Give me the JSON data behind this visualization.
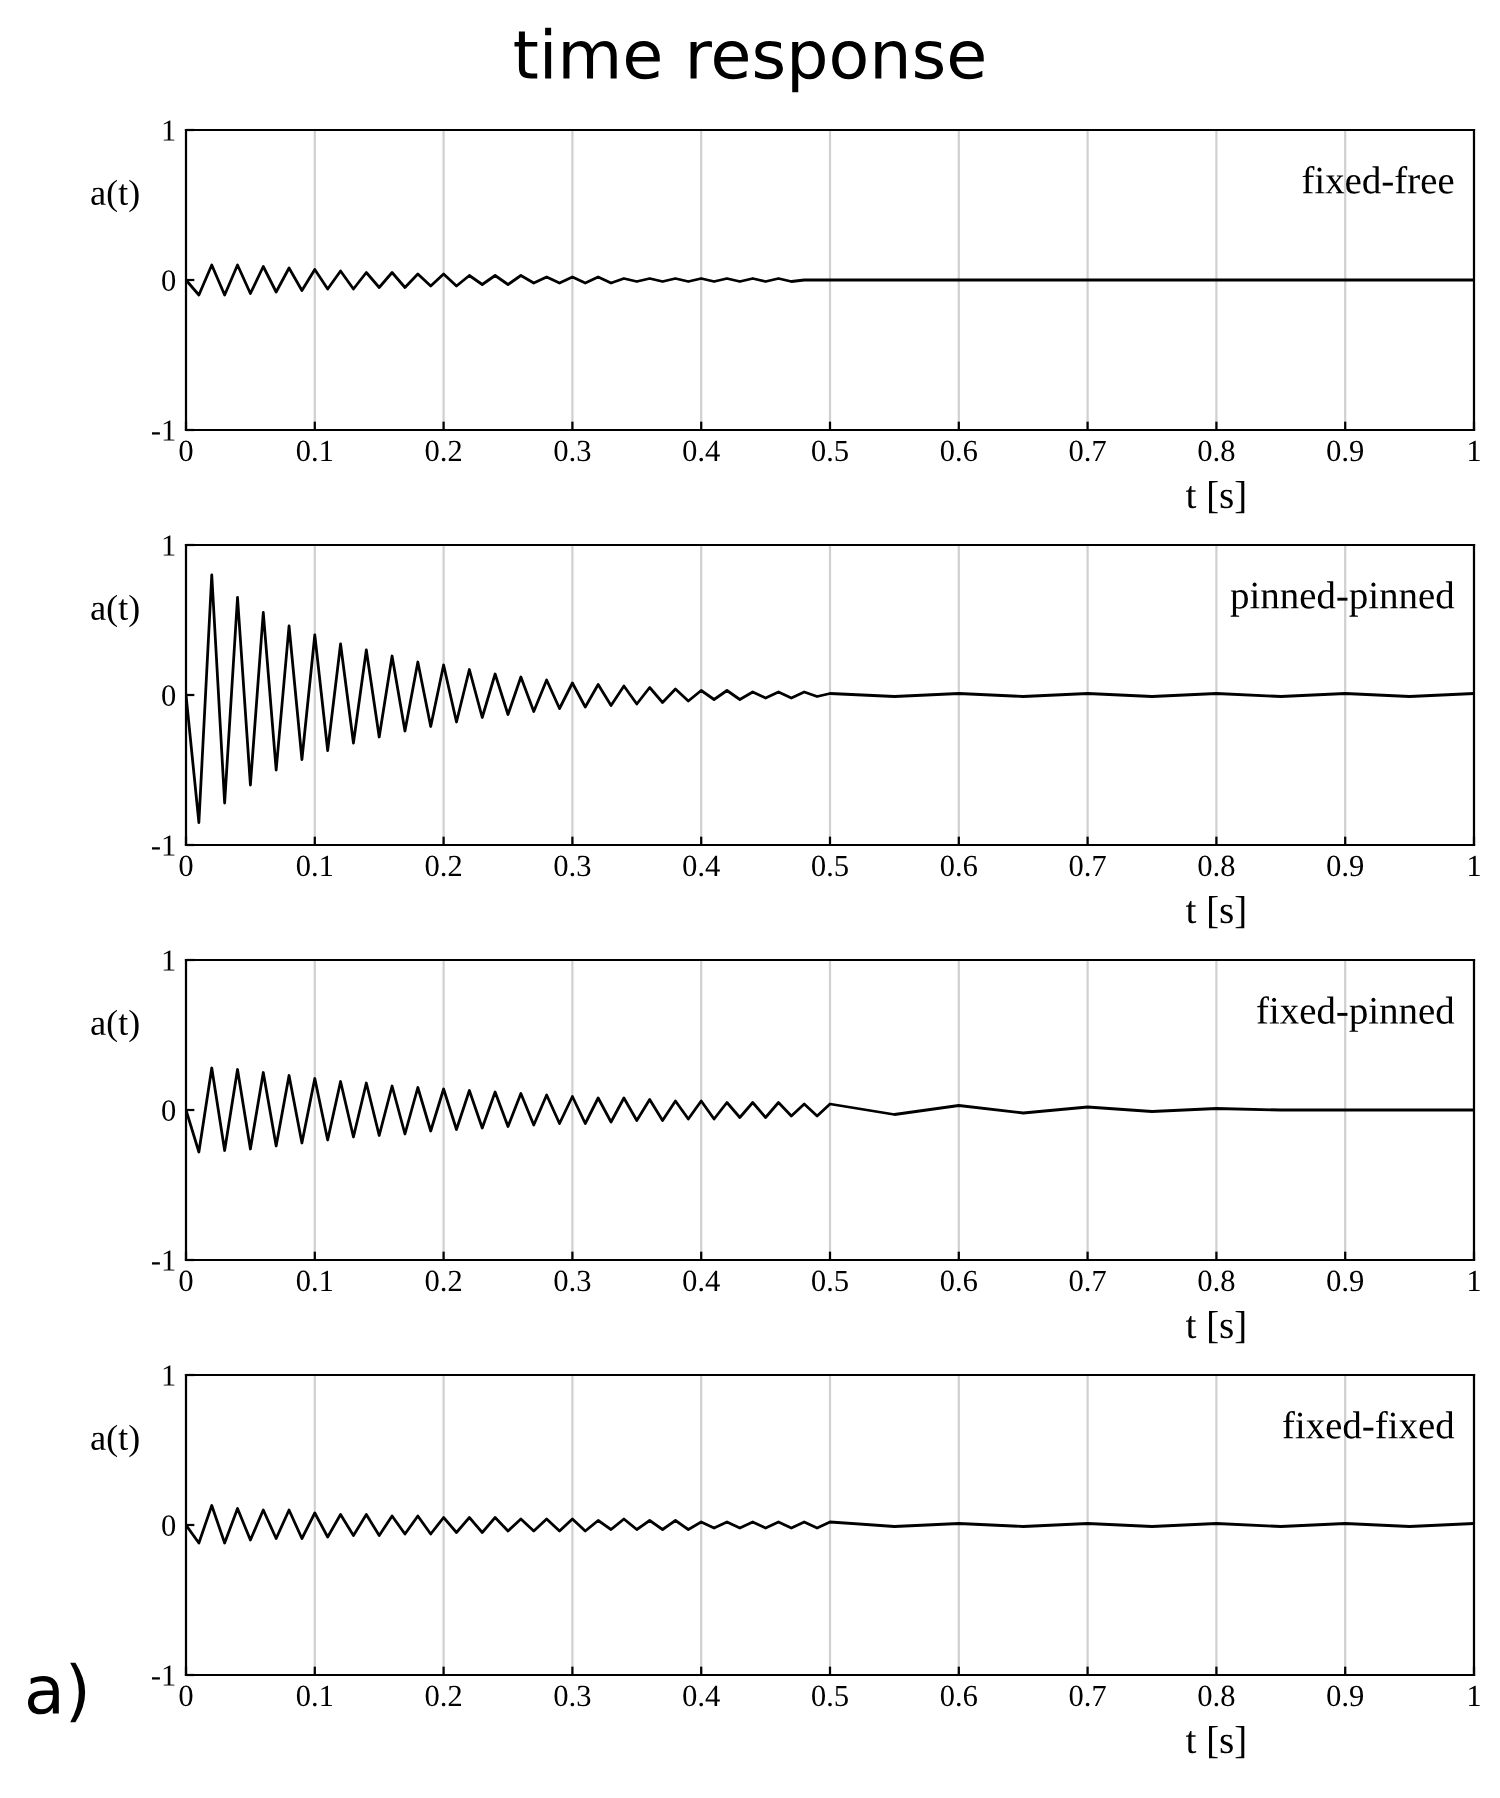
{
  "chart_data": [
    {
      "type": "line",
      "title": "time response",
      "ylabel": "a(t)",
      "xlabel": "t [s]",
      "annotations": [
        "fixed-free"
      ],
      "xlim": [
        0,
        1
      ],
      "ylim": [
        -1,
        1
      ],
      "xticks": [
        0,
        0.1,
        0.2,
        0.3,
        0.4,
        0.5,
        0.6,
        0.7,
        0.8,
        0.9,
        1
      ],
      "yticks": [
        -1,
        0,
        1
      ],
      "grid": "x",
      "line_style": "solid",
      "x": [
        0,
        0.01,
        0.02,
        0.03,
        0.04,
        0.05,
        0.06,
        0.07,
        0.08,
        0.09,
        0.1,
        0.11,
        0.12,
        0.13,
        0.14,
        0.15,
        0.16,
        0.17,
        0.18,
        0.19,
        0.2,
        0.21,
        0.22,
        0.23,
        0.24,
        0.25,
        0.26,
        0.27,
        0.28,
        0.29,
        0.3,
        0.31,
        0.32,
        0.33,
        0.34,
        0.35,
        0.36,
        0.37,
        0.38,
        0.39,
        0.4,
        0.41,
        0.42,
        0.43,
        0.44,
        0.45,
        0.46,
        0.47,
        0.48,
        0.49,
        0.5,
        0.55,
        0.6,
        0.65,
        0.7,
        0.75,
        0.8,
        0.85,
        0.9,
        0.95,
        1
      ],
      "series": [
        {
          "color": "#000000",
          "values": [
            0,
            -0.1,
            0.1,
            -0.1,
            0.1,
            -0.09,
            0.09,
            -0.08,
            0.08,
            -0.07,
            0.07,
            -0.06,
            0.06,
            -0.06,
            0.05,
            -0.05,
            0.05,
            -0.05,
            0.04,
            -0.04,
            0.04,
            -0.04,
            0.03,
            -0.03,
            0.03,
            -0.03,
            0.03,
            -0.02,
            0.02,
            -0.02,
            0.02,
            -0.02,
            0.02,
            -0.02,
            0.01,
            -0.01,
            0.01,
            -0.01,
            0.01,
            -0.01,
            0.01,
            -0.01,
            0.01,
            -0.01,
            0.01,
            -0.01,
            0.01,
            -0.01,
            0,
            0,
            0,
            0,
            0,
            0,
            0,
            0,
            0,
            0,
            0,
            0,
            0
          ]
        }
      ]
    },
    {
      "type": "line",
      "ylabel": "a(t)",
      "xlabel": "t [s]",
      "annotations": [
        "pinned-pinned"
      ],
      "xlim": [
        0,
        1
      ],
      "ylim": [
        -1,
        1
      ],
      "xticks": [
        0,
        0.1,
        0.2,
        0.3,
        0.4,
        0.5,
        0.6,
        0.7,
        0.8,
        0.9,
        1
      ],
      "yticks": [
        -1,
        0,
        1
      ],
      "grid": "x",
      "line_style": "solid",
      "x": [
        0,
        0.01,
        0.02,
        0.03,
        0.04,
        0.05,
        0.06,
        0.07,
        0.08,
        0.09,
        0.1,
        0.11,
        0.12,
        0.13,
        0.14,
        0.15,
        0.16,
        0.17,
        0.18,
        0.19,
        0.2,
        0.21,
        0.22,
        0.23,
        0.24,
        0.25,
        0.26,
        0.27,
        0.28,
        0.29,
        0.3,
        0.31,
        0.32,
        0.33,
        0.34,
        0.35,
        0.36,
        0.37,
        0.38,
        0.39,
        0.4,
        0.41,
        0.42,
        0.43,
        0.44,
        0.45,
        0.46,
        0.47,
        0.48,
        0.49,
        0.5,
        0.55,
        0.6,
        0.65,
        0.7,
        0.75,
        0.8,
        0.85,
        0.9,
        0.95,
        1
      ],
      "series": [
        {
          "color": "#000000",
          "values": [
            0,
            -0.85,
            0.8,
            -0.72,
            0.65,
            -0.6,
            0.55,
            -0.5,
            0.46,
            -0.43,
            0.4,
            -0.37,
            0.34,
            -0.32,
            0.3,
            -0.28,
            0.26,
            -0.24,
            0.22,
            -0.21,
            0.2,
            -0.18,
            0.17,
            -0.15,
            0.14,
            -0.13,
            0.12,
            -0.11,
            0.1,
            -0.09,
            0.08,
            -0.08,
            0.07,
            -0.07,
            0.06,
            -0.06,
            0.05,
            -0.05,
            0.04,
            -0.04,
            0.03,
            -0.03,
            0.03,
            -0.03,
            0.02,
            -0.02,
            0.02,
            -0.02,
            0.02,
            -0.01,
            0.01,
            -0.01,
            0.01,
            -0.01,
            0.01,
            -0.01,
            0.01,
            -0.01,
            0.01,
            -0.01,
            0.01
          ]
        }
      ]
    },
    {
      "type": "line",
      "ylabel": "a(t)",
      "xlabel": "t [s]",
      "annotations": [
        "fixed-pinned"
      ],
      "xlim": [
        0,
        1
      ],
      "ylim": [
        -1,
        1
      ],
      "xticks": [
        0,
        0.1,
        0.2,
        0.3,
        0.4,
        0.5,
        0.6,
        0.7,
        0.8,
        0.9,
        1
      ],
      "yticks": [
        -1,
        0,
        1
      ],
      "grid": "x",
      "line_style": "solid",
      "x": [
        0,
        0.01,
        0.02,
        0.03,
        0.04,
        0.05,
        0.06,
        0.07,
        0.08,
        0.09,
        0.1,
        0.11,
        0.12,
        0.13,
        0.14,
        0.15,
        0.16,
        0.17,
        0.18,
        0.19,
        0.2,
        0.21,
        0.22,
        0.23,
        0.24,
        0.25,
        0.26,
        0.27,
        0.28,
        0.29,
        0.3,
        0.31,
        0.32,
        0.33,
        0.34,
        0.35,
        0.36,
        0.37,
        0.38,
        0.39,
        0.4,
        0.41,
        0.42,
        0.43,
        0.44,
        0.45,
        0.46,
        0.47,
        0.48,
        0.49,
        0.5,
        0.55,
        0.6,
        0.65,
        0.7,
        0.75,
        0.8,
        0.85,
        0.9,
        0.95,
        1
      ],
      "series": [
        {
          "color": "#000000",
          "values": [
            0,
            -0.28,
            0.28,
            -0.27,
            0.27,
            -0.26,
            0.25,
            -0.24,
            0.23,
            -0.22,
            0.21,
            -0.2,
            0.19,
            -0.18,
            0.18,
            -0.17,
            0.16,
            -0.16,
            0.15,
            -0.14,
            0.14,
            -0.13,
            0.13,
            -0.12,
            0.12,
            -0.11,
            0.11,
            -0.1,
            0.1,
            -0.09,
            0.09,
            -0.09,
            0.08,
            -0.08,
            0.08,
            -0.07,
            0.07,
            -0.07,
            0.06,
            -0.06,
            0.06,
            -0.06,
            0.05,
            -0.05,
            0.05,
            -0.05,
            0.05,
            -0.04,
            0.04,
            -0.04,
            0.04,
            -0.03,
            0.03,
            -0.02,
            0.02,
            -0.01,
            0.01,
            0,
            0,
            0,
            0
          ]
        }
      ]
    },
    {
      "type": "line",
      "ylabel": "a(t)",
      "xlabel": "t [s]",
      "annotations": [
        "fixed-fixed",
        "a)"
      ],
      "xlim": [
        0,
        1
      ],
      "ylim": [
        -1,
        1
      ],
      "xticks": [
        0,
        0.1,
        0.2,
        0.3,
        0.4,
        0.5,
        0.6,
        0.7,
        0.8,
        0.9,
        1
      ],
      "yticks": [
        -1,
        0,
        1
      ],
      "grid": "x",
      "line_style": "solid",
      "x": [
        0,
        0.01,
        0.02,
        0.03,
        0.04,
        0.05,
        0.06,
        0.07,
        0.08,
        0.09,
        0.1,
        0.11,
        0.12,
        0.13,
        0.14,
        0.15,
        0.16,
        0.17,
        0.18,
        0.19,
        0.2,
        0.21,
        0.22,
        0.23,
        0.24,
        0.25,
        0.26,
        0.27,
        0.28,
        0.29,
        0.3,
        0.31,
        0.32,
        0.33,
        0.34,
        0.35,
        0.36,
        0.37,
        0.38,
        0.39,
        0.4,
        0.41,
        0.42,
        0.43,
        0.44,
        0.45,
        0.46,
        0.47,
        0.48,
        0.49,
        0.5,
        0.55,
        0.6,
        0.65,
        0.7,
        0.75,
        0.8,
        0.85,
        0.9,
        0.95,
        1
      ],
      "series": [
        {
          "color": "#000000",
          "values": [
            0,
            -0.12,
            0.13,
            -0.12,
            0.11,
            -0.1,
            0.1,
            -0.09,
            0.1,
            -0.09,
            0.08,
            -0.08,
            0.07,
            -0.07,
            0.07,
            -0.07,
            0.06,
            -0.06,
            0.06,
            -0.06,
            0.05,
            -0.05,
            0.05,
            -0.05,
            0.05,
            -0.04,
            0.04,
            -0.04,
            0.04,
            -0.04,
            0.04,
            -0.04,
            0.03,
            -0.03,
            0.04,
            -0.03,
            0.03,
            -0.03,
            0.03,
            -0.03,
            0.02,
            -0.02,
            0.02,
            -0.02,
            0.02,
            -0.02,
            0.02,
            -0.02,
            0.02,
            -0.02,
            0.02,
            -0.01,
            0.01,
            -0.01,
            0.01,
            -0.01,
            0.01,
            -0.01,
            0.01,
            -0.01,
            0.01
          ]
        }
      ]
    }
  ]
}
